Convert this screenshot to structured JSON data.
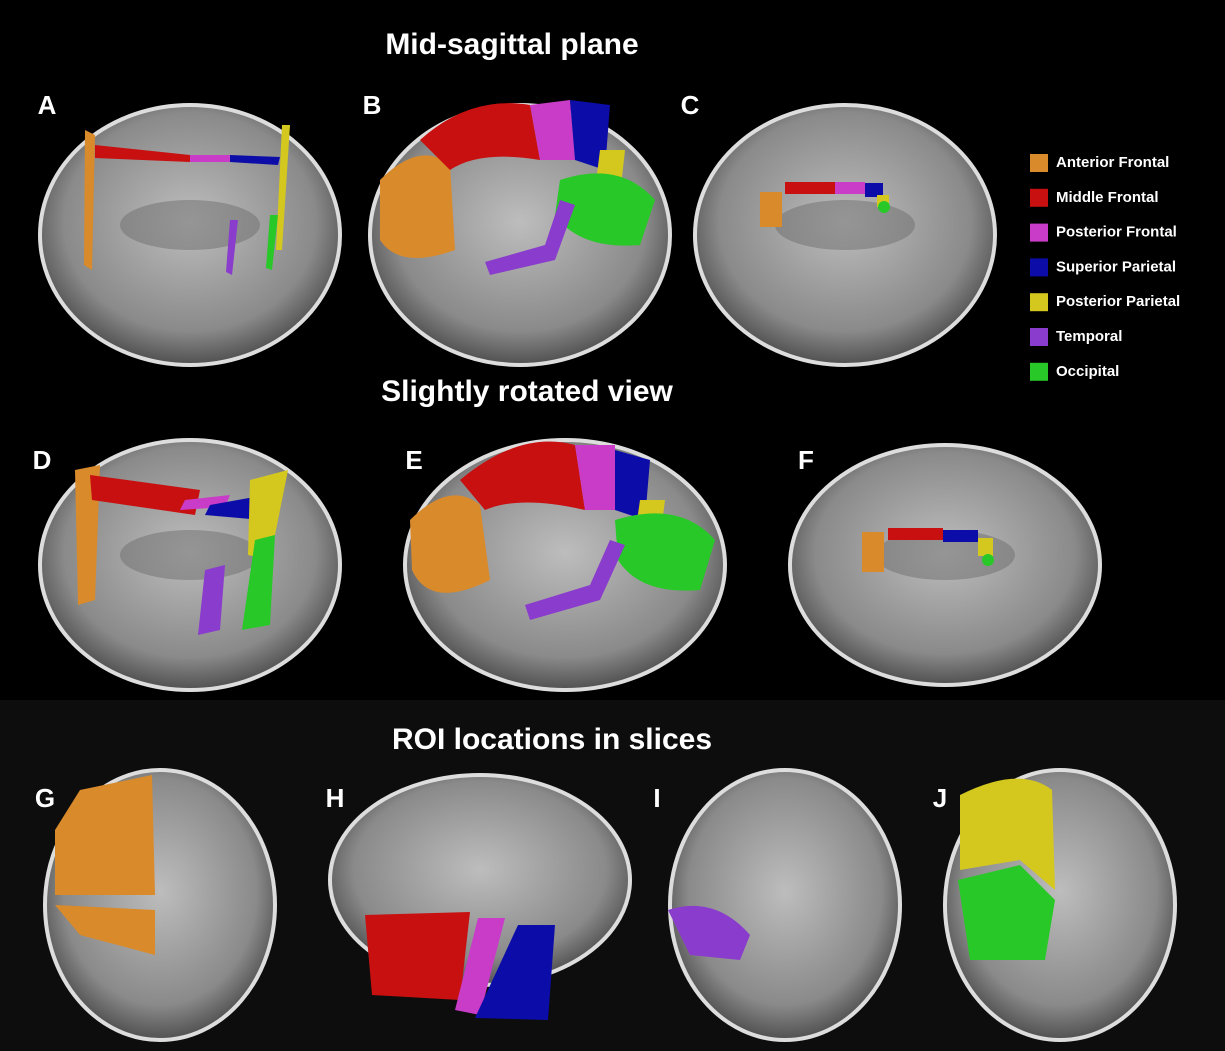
{
  "sections": [
    {
      "title": "Mid-sagittal plane"
    },
    {
      "title": "Slightly rotated view"
    },
    {
      "title": "ROI locations in slices"
    }
  ],
  "panels": [
    "A",
    "B",
    "C",
    "D",
    "E",
    "F",
    "G",
    "H",
    "I",
    "J"
  ],
  "legend": [
    {
      "label": "Anterior Frontal",
      "color": "#d98a2b"
    },
    {
      "label": "Middle Frontal",
      "color": "#c81010"
    },
    {
      "label": "Posterior Frontal",
      "color": "#c83cc8"
    },
    {
      "label": "Superior Parietal",
      "color": "#0c0ca8"
    },
    {
      "label": "Posterior Parietal",
      "color": "#d4c81e"
    },
    {
      "label": "Temporal",
      "color": "#8a3ccc"
    },
    {
      "label": "Occipital",
      "color": "#28c828"
    }
  ]
}
